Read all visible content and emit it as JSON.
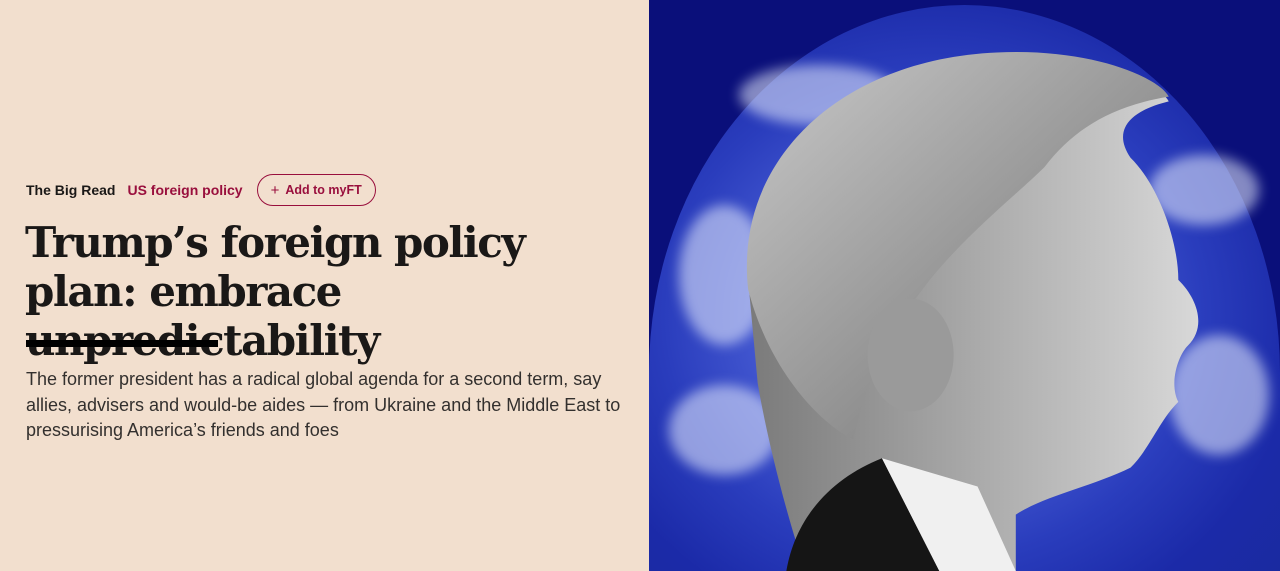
{
  "article": {
    "kicker": "The Big Read",
    "topic": "US foreign policy",
    "myft_button": "Add to myFT",
    "myft_icon": "plus-icon",
    "title": "Trump’s foreign policy plan: embrace unpredictability",
    "standfirst": "The former president has a radical global agenda for a second term, say allies, advisers and would-be aides — from Ukraine and the Middle East to pressurising America’s friends and foes"
  },
  "colors": {
    "background": "#f2dfce",
    "accent": "#990f3d",
    "text": "#1a1817"
  }
}
